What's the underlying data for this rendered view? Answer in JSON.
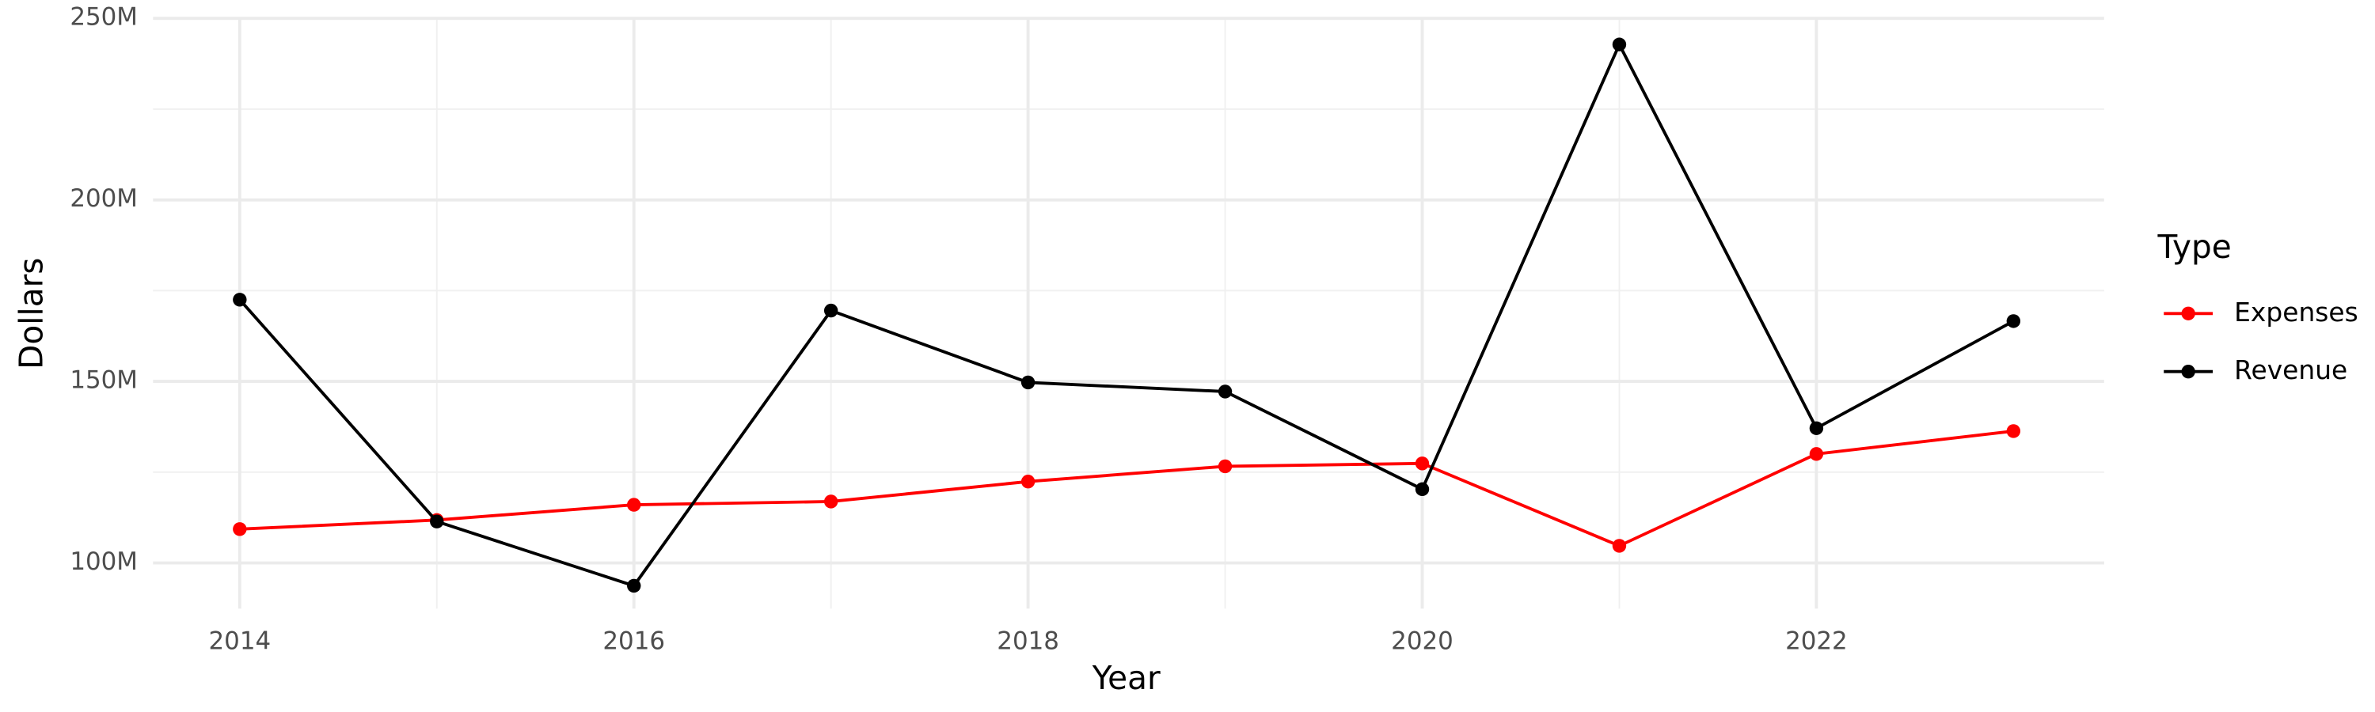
{
  "chart_data": {
    "type": "line",
    "x_label": "Year",
    "y_label": "Dollars",
    "legend_title": "Type",
    "legend": "right",
    "x": [
      2014,
      2015,
      2016,
      2017,
      2018,
      2019,
      2020,
      2021,
      2022,
      2023
    ],
    "series": [
      {
        "name": "Expenses",
        "color": "#ff0000",
        "values": [
          109300000,
          111800000,
          116000000,
          116900000,
          122400000,
          126600000,
          127400000,
          104700000,
          130000000,
          136300000
        ]
      },
      {
        "name": "Revenue",
        "color": "#000000",
        "values": [
          172500000,
          111400000,
          93700000,
          169500000,
          149700000,
          147200000,
          120300000,
          242800000,
          137100000,
          166600000
        ]
      }
    ],
    "xlim": [
      2013.56,
      2023.46
    ],
    "xticks": [
      2014,
      2016,
      2018,
      2020,
      2022
    ],
    "ylim": [
      87400000,
      250000000
    ],
    "yticks": [
      {
        "value": 100000000,
        "label": "100M"
      },
      {
        "value": 150000000,
        "label": "150M"
      },
      {
        "value": 200000000,
        "label": "200M"
      },
      {
        "value": 250000000,
        "label": "250M"
      }
    ],
    "grid": true,
    "minor_grid": true
  }
}
